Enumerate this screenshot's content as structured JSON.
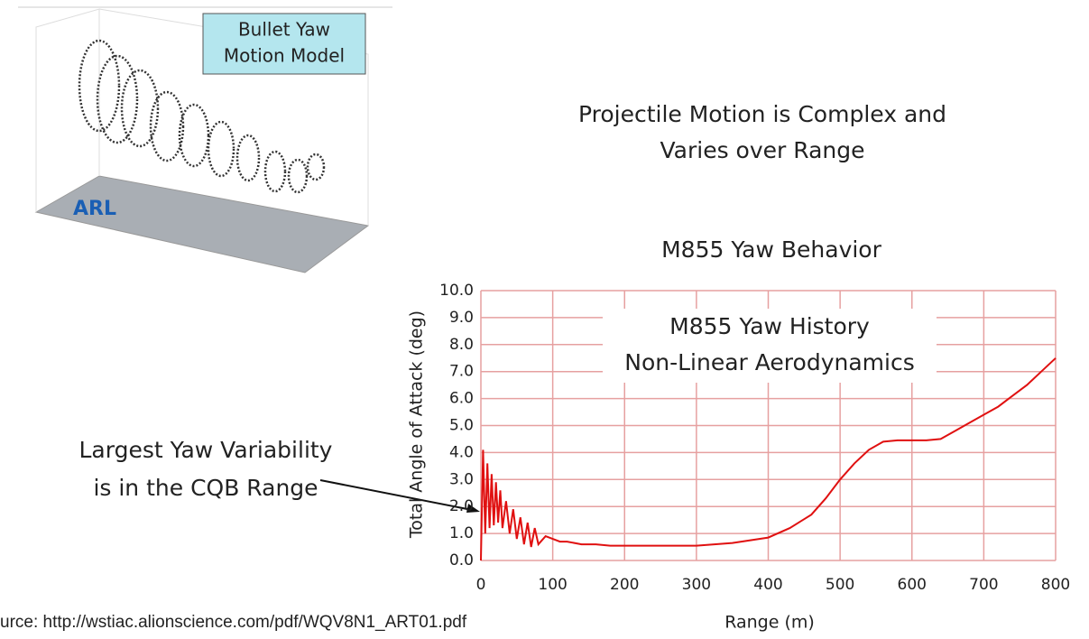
{
  "slide": {
    "heading": [
      "Projectile Motion is Complex and",
      "Varies over Range"
    ],
    "callout": [
      "Largest Yaw Variability",
      "is in the CQB Range"
    ],
    "source": "urce: http://wstiac.alionscience.com/pdf/WQV8N1_ART01.pdf",
    "inset_label": [
      "Bullet Yaw",
      "Motion Model"
    ],
    "inset_logo": "ARL"
  },
  "chart_data": {
    "type": "line",
    "title": "M855 Yaw Behavior",
    "annotation": [
      "M855 Yaw History",
      "Non-Linear Aerodynamics"
    ],
    "x_label": "Range (m)",
    "y_label": "Total Angle of Attack (deg)",
    "x": [
      0,
      3,
      6,
      9,
      12,
      15,
      18,
      21,
      24,
      27,
      30,
      35,
      40,
      45,
      50,
      55,
      60,
      65,
      70,
      75,
      80,
      90,
      100,
      110,
      120,
      140,
      160,
      180,
      200,
      250,
      300,
      350,
      400,
      430,
      460,
      480,
      500,
      520,
      540,
      560,
      580,
      600,
      620,
      640,
      660,
      680,
      700,
      720,
      740,
      760,
      780,
      800
    ],
    "values": [
      0.0,
      4.1,
      1.0,
      3.6,
      1.2,
      3.2,
      1.3,
      2.9,
      1.4,
      2.6,
      1.2,
      2.2,
      1.0,
      1.9,
      0.8,
      1.6,
      0.6,
      1.4,
      0.5,
      1.2,
      0.6,
      0.9,
      0.8,
      0.7,
      0.7,
      0.6,
      0.6,
      0.55,
      0.55,
      0.55,
      0.55,
      0.65,
      0.85,
      1.2,
      1.7,
      2.3,
      3.0,
      3.6,
      4.1,
      4.4,
      4.45,
      4.45,
      4.45,
      4.5,
      4.8,
      5.1,
      5.4,
      5.7,
      6.1,
      6.5,
      7.0,
      7.5
    ],
    "color": "#e01010",
    "grid": true,
    "grid_color": "#e6a0a0",
    "xlim": [
      0,
      800
    ],
    "ylim": [
      0,
      10
    ],
    "xticks": [
      0,
      100,
      200,
      300,
      400,
      500,
      600,
      700,
      800
    ],
    "yticks": [
      {
        "value": 0,
        "label": "0.0"
      },
      {
        "value": 1,
        "label": "1.0"
      },
      {
        "value": 2,
        "label": "2.0"
      },
      {
        "value": 3,
        "label": "3.0"
      },
      {
        "value": 4,
        "label": "4.0"
      },
      {
        "value": 5,
        "label": "5.0"
      },
      {
        "value": 6,
        "label": "6.0"
      },
      {
        "value": 7,
        "label": "7.0"
      },
      {
        "value": 8,
        "label": "8.0"
      },
      {
        "value": 9,
        "label": "9.0"
      },
      {
        "value": 10,
        "label": "10.0"
      }
    ]
  }
}
